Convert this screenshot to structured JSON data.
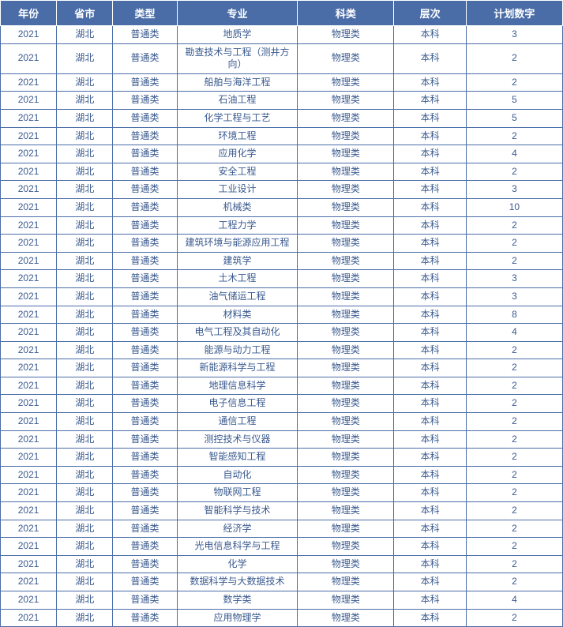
{
  "table": {
    "header_bg": "#4a6da7",
    "header_color": "#ffffff",
    "cell_border": "#4a6da7",
    "cell_color": "#3a5a8f",
    "columns": [
      {
        "key": "year",
        "label": "年份",
        "class": "col-year"
      },
      {
        "key": "prov",
        "label": "省市",
        "class": "col-prov"
      },
      {
        "key": "type",
        "label": "类型",
        "class": "col-type"
      },
      {
        "key": "major",
        "label": "专业",
        "class": "col-major"
      },
      {
        "key": "subj",
        "label": "科类",
        "class": "col-subj"
      },
      {
        "key": "level",
        "label": "层次",
        "class": "col-level"
      },
      {
        "key": "count",
        "label": "计划数字",
        "class": "col-count"
      }
    ],
    "rows": [
      [
        "2021",
        "湖北",
        "普通类",
        "地质学",
        "物理类",
        "本科",
        "3"
      ],
      [
        "2021",
        "湖北",
        "普通类",
        "勘查技术与工程（测井方向）",
        "物理类",
        "本科",
        "2"
      ],
      [
        "2021",
        "湖北",
        "普通类",
        "船舶与海洋工程",
        "物理类",
        "本科",
        "2"
      ],
      [
        "2021",
        "湖北",
        "普通类",
        "石油工程",
        "物理类",
        "本科",
        "5"
      ],
      [
        "2021",
        "湖北",
        "普通类",
        "化学工程与工艺",
        "物理类",
        "本科",
        "5"
      ],
      [
        "2021",
        "湖北",
        "普通类",
        "环境工程",
        "物理类",
        "本科",
        "2"
      ],
      [
        "2021",
        "湖北",
        "普通类",
        "应用化学",
        "物理类",
        "本科",
        "4"
      ],
      [
        "2021",
        "湖北",
        "普通类",
        "安全工程",
        "物理类",
        "本科",
        "2"
      ],
      [
        "2021",
        "湖北",
        "普通类",
        "工业设计",
        "物理类",
        "本科",
        "3"
      ],
      [
        "2021",
        "湖北",
        "普通类",
        "机械类",
        "物理类",
        "本科",
        "10"
      ],
      [
        "2021",
        "湖北",
        "普通类",
        "工程力学",
        "物理类",
        "本科",
        "2"
      ],
      [
        "2021",
        "湖北",
        "普通类",
        "建筑环境与能源应用工程",
        "物理类",
        "本科",
        "2"
      ],
      [
        "2021",
        "湖北",
        "普通类",
        "建筑学",
        "物理类",
        "本科",
        "2"
      ],
      [
        "2021",
        "湖北",
        "普通类",
        "土木工程",
        "物理类",
        "本科",
        "3"
      ],
      [
        "2021",
        "湖北",
        "普通类",
        "油气储运工程",
        "物理类",
        "本科",
        "3"
      ],
      [
        "2021",
        "湖北",
        "普通类",
        "材料类",
        "物理类",
        "本科",
        "8"
      ],
      [
        "2021",
        "湖北",
        "普通类",
        "电气工程及其自动化",
        "物理类",
        "本科",
        "4"
      ],
      [
        "2021",
        "湖北",
        "普通类",
        "能源与动力工程",
        "物理类",
        "本科",
        "2"
      ],
      [
        "2021",
        "湖北",
        "普通类",
        "新能源科学与工程",
        "物理类",
        "本科",
        "2"
      ],
      [
        "2021",
        "湖北",
        "普通类",
        "地理信息科学",
        "物理类",
        "本科",
        "2"
      ],
      [
        "2021",
        "湖北",
        "普通类",
        "电子信息工程",
        "物理类",
        "本科",
        "2"
      ],
      [
        "2021",
        "湖北",
        "普通类",
        "通信工程",
        "物理类",
        "本科",
        "2"
      ],
      [
        "2021",
        "湖北",
        "普通类",
        "测控技术与仪器",
        "物理类",
        "本科",
        "2"
      ],
      [
        "2021",
        "湖北",
        "普通类",
        "智能感知工程",
        "物理类",
        "本科",
        "2"
      ],
      [
        "2021",
        "湖北",
        "普通类",
        "自动化",
        "物理类",
        "本科",
        "2"
      ],
      [
        "2021",
        "湖北",
        "普通类",
        "物联网工程",
        "物理类",
        "本科",
        "2"
      ],
      [
        "2021",
        "湖北",
        "普通类",
        "智能科学与技术",
        "物理类",
        "本科",
        "2"
      ],
      [
        "2021",
        "湖北",
        "普通类",
        "经济学",
        "物理类",
        "本科",
        "2"
      ],
      [
        "2021",
        "湖北",
        "普通类",
        "光电信息科学与工程",
        "物理类",
        "本科",
        "2"
      ],
      [
        "2021",
        "湖北",
        "普通类",
        "化学",
        "物理类",
        "本科",
        "2"
      ],
      [
        "2021",
        "湖北",
        "普通类",
        "数据科学与大数据技术",
        "物理类",
        "本科",
        "2"
      ],
      [
        "2021",
        "湖北",
        "普通类",
        "数学类",
        "物理类",
        "本科",
        "4"
      ],
      [
        "2021",
        "湖北",
        "普通类",
        "应用物理学",
        "物理类",
        "本科",
        "2"
      ]
    ]
  }
}
